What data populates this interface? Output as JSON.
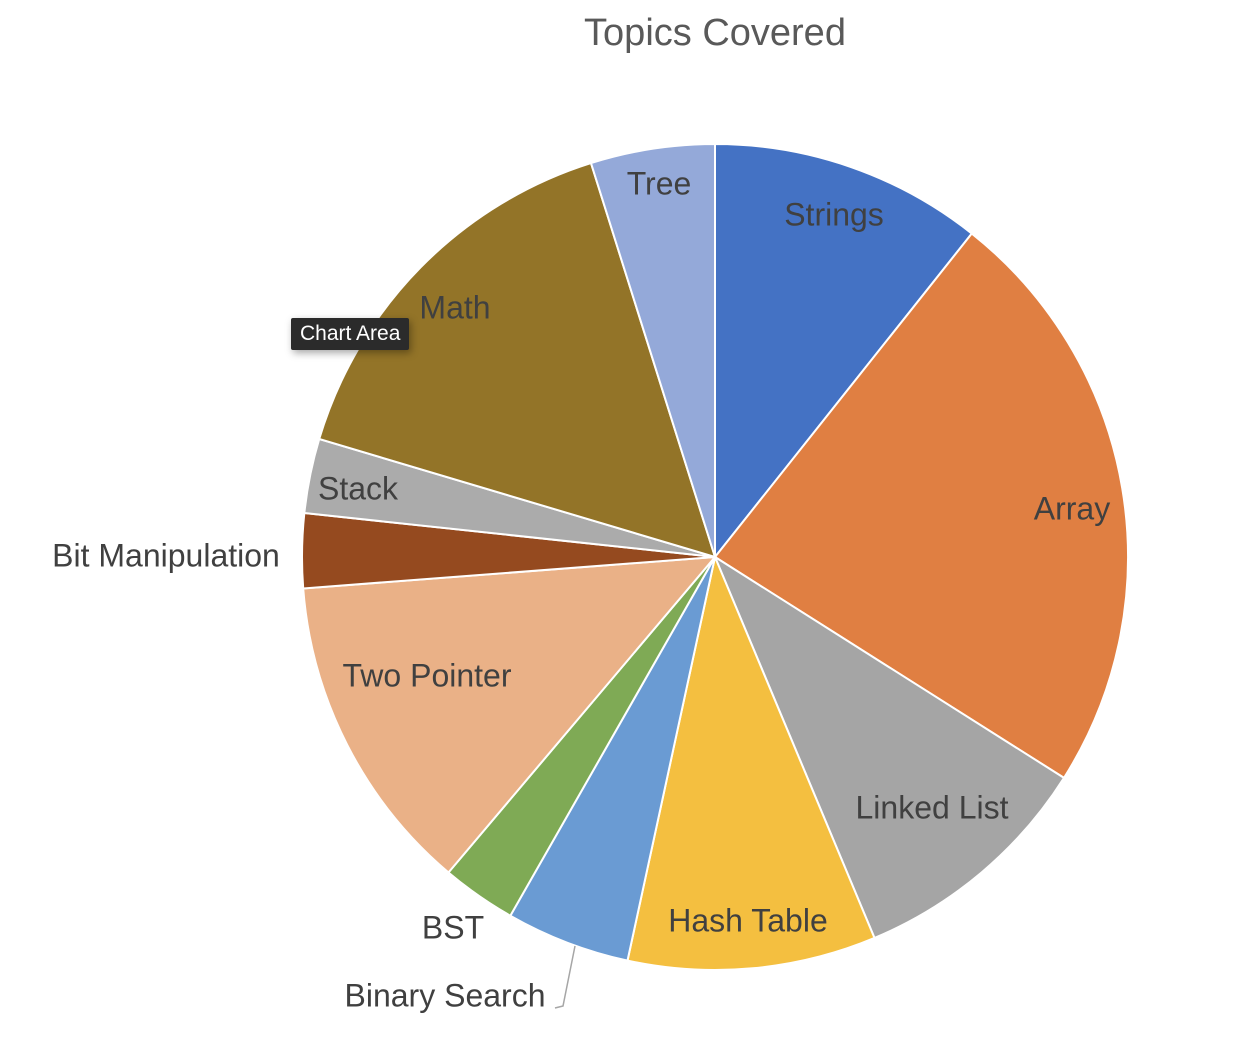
{
  "chart_data": {
    "type": "pie",
    "title": "Topics Covered",
    "categories": [
      "Strings",
      "Array",
      "Linked List",
      "Hash Table",
      "Binary Search",
      "BST",
      "Two Pointer",
      "Bit Manipulation",
      "Stack",
      "Math",
      "Tree"
    ],
    "values": [
      11,
      24,
      10,
      10,
      5,
      3,
      13,
      3,
      3,
      16,
      5
    ],
    "colors": [
      "#4472C4",
      "#E07F42",
      "#A5A5A5",
      "#F4BF40",
      "#6A9BD3",
      "#7FAA55",
      "#EAB187",
      "#954A1F",
      "#ABABAB",
      "#937428",
      "#94A9D9"
    ],
    "legend": "none",
    "data_labels": "category names"
  },
  "tooltip": {
    "text": "Chart Area"
  }
}
